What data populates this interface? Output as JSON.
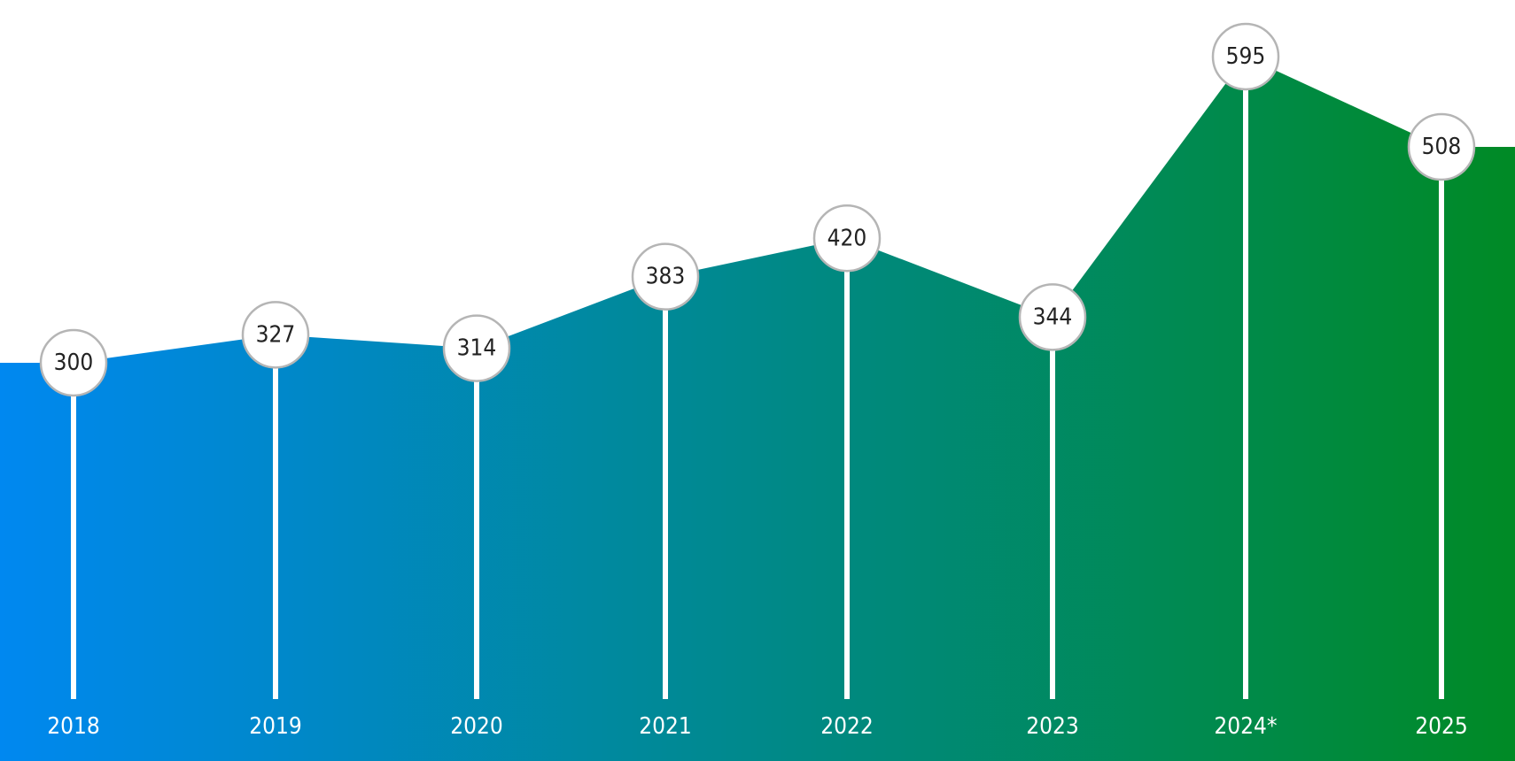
{
  "chart_data": {
    "type": "area",
    "categories": [
      "2018",
      "2019",
      "2020",
      "2021",
      "2022",
      "2023",
      "2024*",
      "2025"
    ],
    "values": [
      300,
      327,
      314,
      383,
      420,
      344,
      595,
      508
    ],
    "colors": [
      "#0088f0",
      "#008a25"
    ]
  }
}
